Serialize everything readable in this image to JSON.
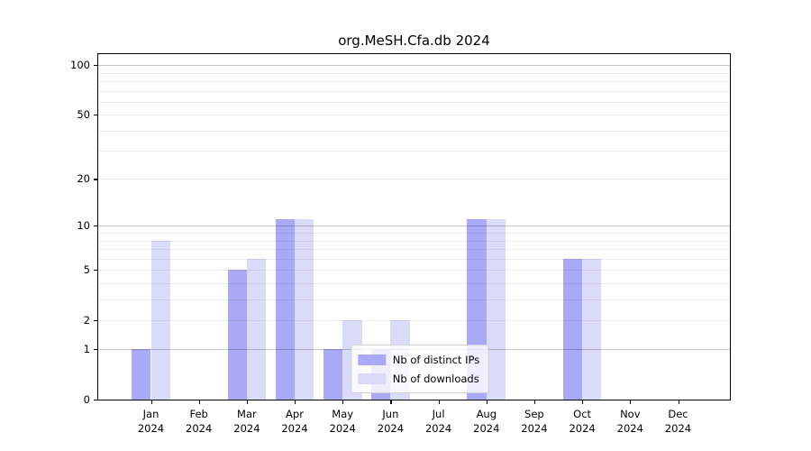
{
  "figure_title": "org.MeSH.Cfa.db 2024",
  "chart_data": {
    "type": "bar",
    "title": "org.MeSH.Cfa.db 2024",
    "categories": [
      "Jan",
      "Feb",
      "Mar",
      "Apr",
      "May",
      "Jun",
      "Jul",
      "Aug",
      "Sep",
      "Oct",
      "Nov",
      "Dec"
    ],
    "category_year": "2024",
    "series": [
      {
        "name": "Nb of distinct IPs",
        "color": "#a9a9f6",
        "values": [
          1,
          0,
          5,
          11,
          1,
          1,
          0,
          11,
          0,
          6,
          0,
          0
        ]
      },
      {
        "name": "Nb of downloads",
        "color": "#dadaf9",
        "values": [
          8,
          0,
          6,
          11,
          2,
          2,
          0,
          11,
          0,
          6,
          0,
          0
        ]
      }
    ],
    "xlabel": "",
    "ylabel": "",
    "yscale": "log1p",
    "ylim": [
      0,
      116
    ],
    "yticks": [
      0,
      1,
      2,
      5,
      10,
      20,
      50,
      100
    ],
    "major_gridlines": [
      1,
      10,
      100
    ],
    "minor_gridlines": [
      2,
      3,
      4,
      5,
      6,
      7,
      8,
      9,
      20,
      30,
      40,
      50,
      60,
      70,
      80,
      90
    ],
    "grid": true,
    "legend_position": "lower center",
    "colors": {
      "bar_ips": "#a9a9f6",
      "bar_downloads": "#dadaf9",
      "axis": "#000000",
      "major_grid": "#c8c8c8",
      "minor_grid": "#ededed",
      "background": "#ffffff"
    }
  }
}
